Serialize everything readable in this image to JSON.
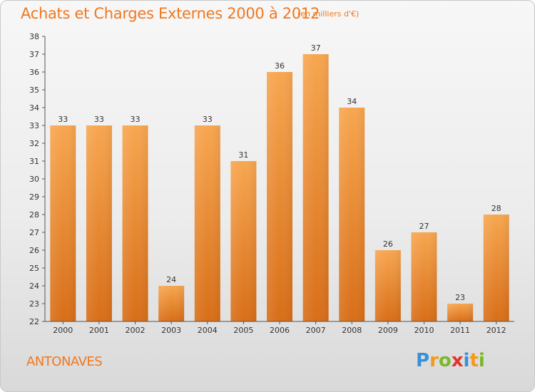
{
  "title": "Achats et Charges Externes 2000 à 2012",
  "subtitle": "(en milliers d'€)",
  "place": "ANTONAVES",
  "logo": {
    "letters": [
      "P",
      "r",
      "o",
      "x",
      "i",
      "t",
      "i"
    ],
    "colors": [
      "#3a8fd6",
      "#f29a1e",
      "#7ab829",
      "#e2322b",
      "#3a8fd6",
      "#f29a1e",
      "#7ab829"
    ]
  },
  "colors": {
    "bar_top": "#f7a650",
    "bar_bottom": "#d86e18",
    "text": "#333333",
    "accent": "#f07820"
  },
  "chart_data": {
    "type": "bar",
    "categories": [
      "2000",
      "2001",
      "2002",
      "2003",
      "2004",
      "2005",
      "2006",
      "2007",
      "2008",
      "2009",
      "2010",
      "2011",
      "2012"
    ],
    "values": [
      33,
      33,
      33,
      24,
      33,
      31,
      36,
      37,
      34,
      26,
      27,
      23,
      28
    ],
    "ylim": [
      22,
      38
    ],
    "yticks": [
      22,
      23,
      24,
      25,
      26,
      27,
      28,
      29,
      30,
      31,
      32,
      33,
      34,
      35,
      36,
      37,
      38
    ],
    "grid": false,
    "data_labels": true
  }
}
